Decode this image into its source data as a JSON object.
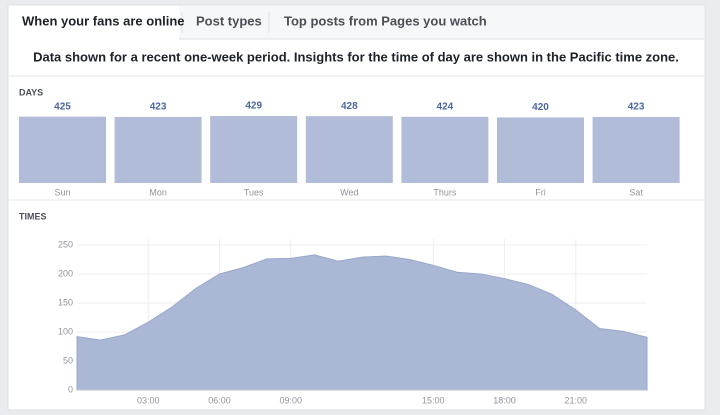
{
  "tabs": [
    "When your fans are online",
    "Post types",
    "Top posts from Pages you watch"
  ],
  "notice": "Data shown for a recent one-week period. Insights for the time of day are shown in the Pacific time zone.",
  "chart_data": [
    {
      "type": "bar",
      "title": "DAYS",
      "categories": [
        "Sun",
        "Mon",
        "Tues",
        "Wed",
        "Thurs",
        "Fri",
        "Sat"
      ],
      "values": [
        425,
        423,
        429,
        428,
        424,
        420,
        423
      ],
      "color": "#b1bdd8"
    },
    {
      "type": "area",
      "title": "TIMES",
      "x": [
        0,
        1,
        2,
        3,
        4,
        5,
        6,
        7,
        8,
        9,
        10,
        11,
        12,
        13,
        14,
        15,
        16,
        17,
        18,
        19,
        20,
        21,
        22,
        23,
        24
      ],
      "values": [
        92,
        86,
        95,
        117,
        143,
        175,
        200,
        211,
        226,
        227,
        233,
        222,
        229,
        231,
        225,
        215,
        203,
        200,
        192,
        182,
        165,
        138,
        106,
        101,
        91
      ],
      "xlim": [
        0,
        24
      ],
      "xticks": [
        {
          "value": 3,
          "label": "03:00"
        },
        {
          "value": 6,
          "label": "06:00"
        },
        {
          "value": 9,
          "label": "09:00"
        },
        {
          "value": 15,
          "label": "15:00"
        },
        {
          "value": 18,
          "label": "18:00"
        },
        {
          "value": 21,
          "label": "21:00"
        }
      ],
      "ylim": [
        0,
        250
      ],
      "yticks": [
        0,
        50,
        100,
        150,
        200,
        250
      ],
      "color": "#aab7d5",
      "grid": true
    }
  ]
}
